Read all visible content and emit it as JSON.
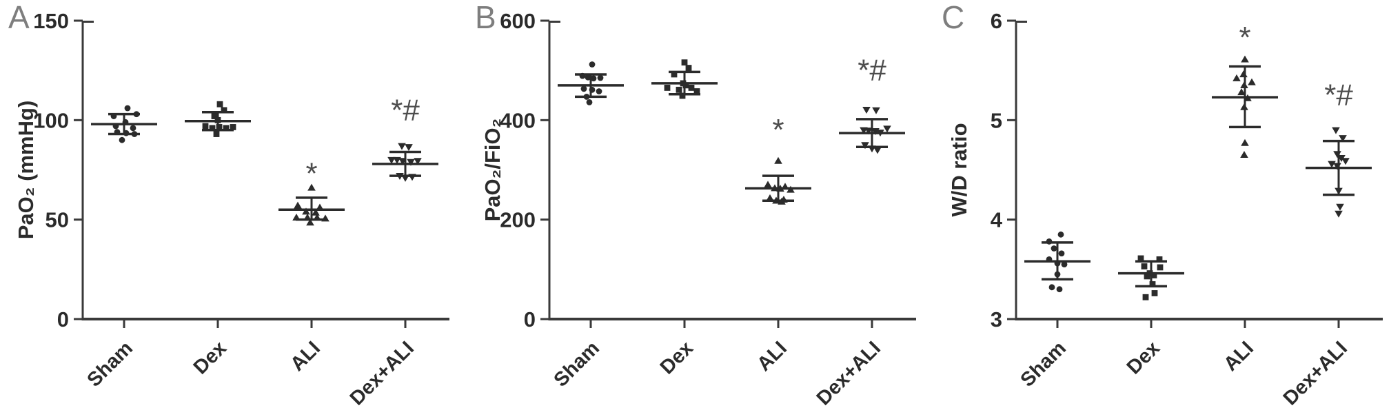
{
  "figure": {
    "background": "#ffffff",
    "colors": {
      "ink": "#2b2b2b",
      "axis": "#3a3a3a",
      "panel_letter": "#7e7e7e",
      "significance": "#4d4d4d"
    }
  },
  "chart_data": [
    {
      "type": "scatter",
      "panel": "A",
      "ylabel": "PaO₂ (mmHg)",
      "ylim": [
        0,
        150
      ],
      "yticks": [
        0,
        50,
        100,
        150
      ],
      "grid": false,
      "categories": [
        "Sham",
        "Dex",
        "ALI",
        "Dex+ALI"
      ],
      "groups": [
        {
          "category": "Sham",
          "marker": "circle",
          "mean": 98,
          "sd_upper": 103,
          "sd_lower": 93,
          "significance": "",
          "points": [
            [
              5,
              106
            ],
            [
              -15,
              102
            ],
            [
              18,
              103
            ],
            [
              2,
              99
            ],
            [
              -12,
              97
            ],
            [
              13,
              96
            ],
            [
              -10,
              94
            ],
            [
              3,
              93.5
            ],
            [
              15,
              93
            ],
            [
              -3,
              90
            ]
          ]
        },
        {
          "category": "Dex",
          "marker": "square",
          "mean": 99.5,
          "sd_upper": 104,
          "sd_lower": 95,
          "significance": "",
          "points": [
            [
              3,
              108
            ],
            [
              9,
              105
            ],
            [
              -5,
              102
            ],
            [
              0,
              100
            ],
            [
              -18,
              97
            ],
            [
              -8,
              96
            ],
            [
              2,
              96.5
            ],
            [
              12,
              96
            ],
            [
              22,
              96.5
            ],
            [
              -2,
              93
            ]
          ]
        },
        {
          "category": "ALI",
          "marker": "triangle-up",
          "mean": 55,
          "sd_upper": 61,
          "sd_lower": 50,
          "significance": "*",
          "sig_y": 68,
          "points": [
            [
              0,
              66
            ],
            [
              -20,
              57
            ],
            [
              12,
              56
            ],
            [
              -8,
              54
            ],
            [
              6,
              53.5
            ],
            [
              -22,
              51
            ],
            [
              -6,
              51
            ],
            [
              8,
              51
            ],
            [
              20,
              50.5
            ],
            [
              -2,
              48.5
            ]
          ]
        },
        {
          "category": "Dex+ALI",
          "marker": "triangle-down",
          "mean": 78,
          "sd_upper": 84,
          "sd_lower": 72,
          "significance": "*#",
          "sig_y": 100,
          "points": [
            [
              -5,
              87
            ],
            [
              5,
              86.5
            ],
            [
              -20,
              80
            ],
            [
              -12,
              80
            ],
            [
              -4,
              79.5
            ],
            [
              8,
              79
            ],
            [
              18,
              79.5
            ],
            [
              -8,
              72
            ],
            [
              0,
              71
            ],
            [
              10,
              71.5
            ]
          ]
        }
      ]
    },
    {
      "type": "scatter",
      "panel": "B",
      "ylabel": "PaO₂/FiO₂",
      "ylim": [
        0,
        600
      ],
      "yticks": [
        0,
        200,
        400,
        600
      ],
      "grid": false,
      "categories": [
        "Sham",
        "Dex",
        "ALI",
        "Dex+ALI"
      ],
      "groups": [
        {
          "category": "Sham",
          "marker": "circle",
          "mean": 470,
          "sd_upper": 492,
          "sd_lower": 447,
          "significance": "",
          "points": [
            [
              2,
              512
            ],
            [
              -12,
              489
            ],
            [
              -4,
              486
            ],
            [
              14,
              485
            ],
            [
              4,
              484
            ],
            [
              -10,
              463
            ],
            [
              2,
              461
            ],
            [
              12,
              458
            ],
            [
              -6,
              447
            ],
            [
              -2,
              436
            ]
          ]
        },
        {
          "category": "Dex",
          "marker": "square",
          "mean": 474,
          "sd_upper": 497,
          "sd_lower": 452,
          "significance": "",
          "points": [
            [
              0,
              516
            ],
            [
              6,
              505
            ],
            [
              -15,
              492
            ],
            [
              -2,
              474
            ],
            [
              2,
              470
            ],
            [
              -25,
              465
            ],
            [
              10,
              465
            ],
            [
              -8,
              461
            ],
            [
              18,
              458
            ],
            [
              -3,
              449
            ]
          ]
        },
        {
          "category": "ALI",
          "marker": "triangle-up",
          "mean": 263,
          "sd_upper": 288,
          "sd_lower": 238,
          "significance": "*",
          "sig_y": 360,
          "points": [
            [
              0,
              318
            ],
            [
              -15,
              270
            ],
            [
              10,
              266
            ],
            [
              -5,
              263
            ],
            [
              3,
              262
            ],
            [
              18,
              260
            ],
            [
              -12,
              243
            ],
            [
              8,
              240
            ],
            [
              -3,
              238
            ],
            [
              5,
              236
            ]
          ]
        },
        {
          "category": "Dex+ALI",
          "marker": "triangle-down",
          "mean": 374,
          "sd_upper": 402,
          "sd_lower": 346,
          "significance": "*#",
          "sig_y": 480,
          "points": [
            [
              -8,
              421
            ],
            [
              6,
              420
            ],
            [
              22,
              383
            ],
            [
              -12,
              380
            ],
            [
              -5,
              379
            ],
            [
              5,
              378
            ],
            [
              12,
              375
            ],
            [
              -10,
              350
            ],
            [
              0,
              343
            ],
            [
              8,
              340
            ]
          ]
        }
      ]
    },
    {
      "type": "scatter",
      "panel": "C",
      "ylabel": "W/D ratio",
      "ylim": [
        3,
        6
      ],
      "yticks": [
        3,
        4,
        5,
        6
      ],
      "grid": false,
      "categories": [
        "Sham",
        "Dex",
        "ALI",
        "Dex+ALI"
      ],
      "groups": [
        {
          "category": "Sham",
          "marker": "circle",
          "mean": 3.58,
          "sd_upper": 3.77,
          "sd_lower": 3.4,
          "significance": "",
          "points": [
            [
              5,
              3.85
            ],
            [
              -12,
              3.78
            ],
            [
              -5,
              3.71
            ],
            [
              6,
              3.66
            ],
            [
              -12,
              3.6
            ],
            [
              0,
              3.56
            ],
            [
              10,
              3.55
            ],
            [
              0,
              3.45
            ],
            [
              -8,
              3.32
            ],
            [
              3,
              3.3
            ]
          ]
        },
        {
          "category": "Dex",
          "marker": "square",
          "mean": 3.46,
          "sd_upper": 3.58,
          "sd_lower": 3.33,
          "significance": "",
          "points": [
            [
              -15,
              3.61
            ],
            [
              12,
              3.6
            ],
            [
              -10,
              3.53
            ],
            [
              13,
              3.52
            ],
            [
              -2,
              3.46
            ],
            [
              4,
              3.44
            ],
            [
              -6,
              3.43
            ],
            [
              2,
              3.35
            ],
            [
              5,
              3.26
            ],
            [
              -8,
              3.22
            ]
          ]
        },
        {
          "category": "ALI",
          "marker": "triangle-up",
          "mean": 5.23,
          "sd_upper": 5.54,
          "sd_lower": 4.93,
          "significance": "*",
          "sig_y": 5.73,
          "points": [
            [
              0,
              5.61
            ],
            [
              -2,
              5.46
            ],
            [
              -12,
              5.42
            ],
            [
              10,
              5.38
            ],
            [
              -1,
              5.35
            ],
            [
              -5,
              5.28
            ],
            [
              4,
              5.22
            ],
            [
              -1,
              5.13
            ],
            [
              0,
              4.77
            ],
            [
              -1,
              4.65
            ]
          ]
        },
        {
          "category": "Dex+ALI",
          "marker": "triangle-down",
          "mean": 4.52,
          "sd_upper": 4.79,
          "sd_lower": 4.25,
          "significance": "*#",
          "sig_y": 5.15,
          "points": [
            [
              -4,
              4.9
            ],
            [
              6,
              4.82
            ],
            [
              -2,
              4.66
            ],
            [
              4,
              4.62
            ],
            [
              10,
              4.59
            ],
            [
              -10,
              4.56
            ],
            [
              -2,
              4.54
            ],
            [
              0,
              4.29
            ],
            [
              2,
              4.13
            ],
            [
              0,
              4.06
            ]
          ]
        }
      ]
    }
  ]
}
